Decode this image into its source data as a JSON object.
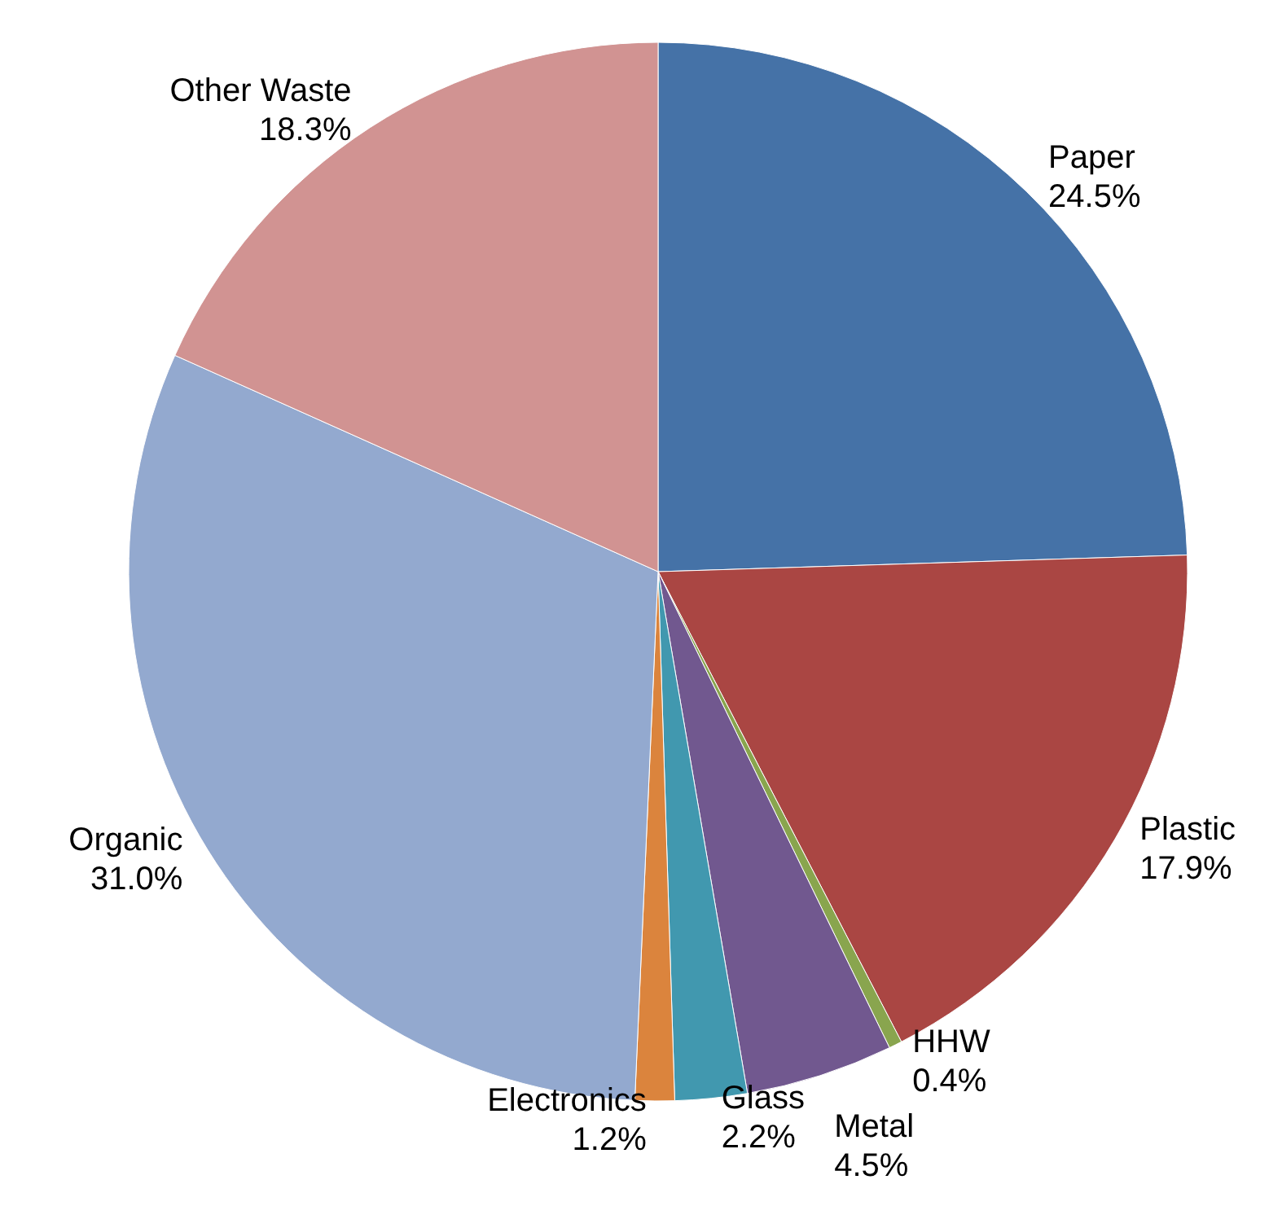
{
  "chart_data": {
    "type": "pie",
    "categories": [
      "Paper",
      "Plastic",
      "HHW",
      "Metal",
      "Glass",
      "Electronics",
      "Organic",
      "Other Waste"
    ],
    "values": [
      24.5,
      17.9,
      0.4,
      4.5,
      2.2,
      1.2,
      31.0,
      18.3
    ],
    "value_labels": [
      "24.5%",
      "17.9%",
      "0.4%",
      "4.5%",
      "2.2%",
      "1.2%",
      "31.0%",
      "18.3%"
    ],
    "colors": [
      "#4572a7",
      "#aa4643",
      "#89a54e",
      "#71588f",
      "#4198af",
      "#db843d",
      "#93a9cf",
      "#d19392"
    ],
    "legend": false
  }
}
